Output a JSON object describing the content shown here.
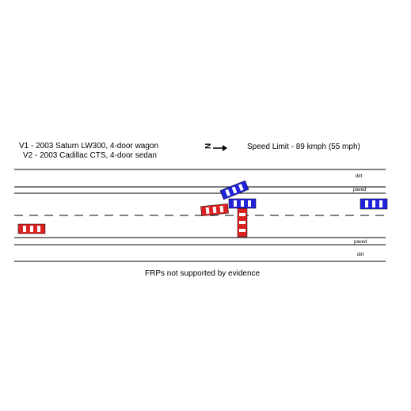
{
  "vehicles": {
    "v1": {
      "label": "V1 - 2003 Saturn LW300, 4-door wagon",
      "color": "#dd2222"
    },
    "v2": {
      "label": "V2 - 2003 Cadillac CTS, 4-door sedan",
      "color": "#2222dd"
    }
  },
  "north_indicator": {
    "letter": "N",
    "direction": "right-arrow-icon"
  },
  "speed_limit": "Speed Limit - 89 kmph (55 mph)",
  "road": {
    "top_dirt_label": "dirt",
    "top_paved_label": "paved",
    "bottom_paved_label": "paved",
    "bottom_dirt_label": "dirt",
    "center_line": "dashed"
  },
  "caption": "FRPs not supported by evidence"
}
